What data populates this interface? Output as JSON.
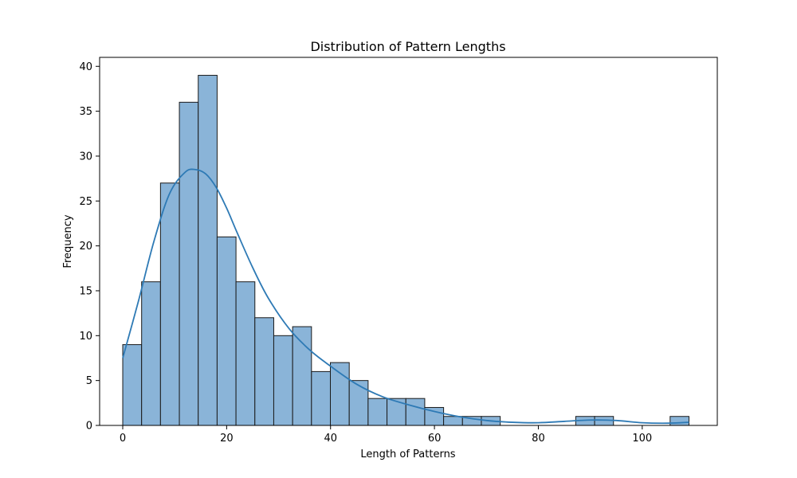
{
  "chart_data": {
    "type": "bar",
    "title": "Distribution of Pattern Lengths",
    "xlabel": "Length of Patterns",
    "ylabel": "Frequency",
    "xlim": [
      -4.45,
      114.45
    ],
    "ylim": [
      0,
      41
    ],
    "xticks": [
      "0",
      "20",
      "40",
      "60",
      "80",
      "100"
    ],
    "xtick_values": [
      0,
      20,
      40,
      60,
      80,
      100
    ],
    "yticks": [
      "0",
      "5",
      "10",
      "15",
      "20",
      "25",
      "30",
      "35",
      "40"
    ],
    "ytick_values": [
      0,
      5,
      10,
      15,
      20,
      25,
      30,
      35,
      40
    ],
    "bin_start": 0,
    "bin_width": 3.6333,
    "values": [
      9,
      16,
      27,
      36,
      39,
      21,
      16,
      12,
      10,
      11,
      6,
      7,
      5,
      3,
      3,
      3,
      2,
      1,
      1,
      1,
      0,
      0,
      0,
      0,
      1,
      1,
      0,
      0,
      0,
      1
    ],
    "kde": {
      "x": [
        0,
        3,
        6,
        9,
        12,
        14,
        16,
        18,
        20,
        22,
        25,
        28,
        32,
        36,
        40,
        45,
        50,
        55,
        60,
        65,
        70,
        75,
        80,
        85,
        90,
        95,
        100,
        105,
        109
      ],
      "y": [
        7.5,
        13.8,
        20.5,
        25.8,
        28.2,
        28.5,
        28.0,
        26.5,
        24.2,
        21.5,
        17.6,
        14.2,
        10.8,
        8.4,
        6.6,
        4.6,
        3.2,
        2.3,
        1.55,
        0.95,
        0.55,
        0.35,
        0.3,
        0.45,
        0.6,
        0.55,
        0.3,
        0.25,
        0.35
      ]
    },
    "grid": false,
    "legend": "none",
    "colors": {
      "bar_fill": "#8ab4d8",
      "bar_edge": "#1a1a1a",
      "kde_line": "#2e7ab5"
    }
  }
}
